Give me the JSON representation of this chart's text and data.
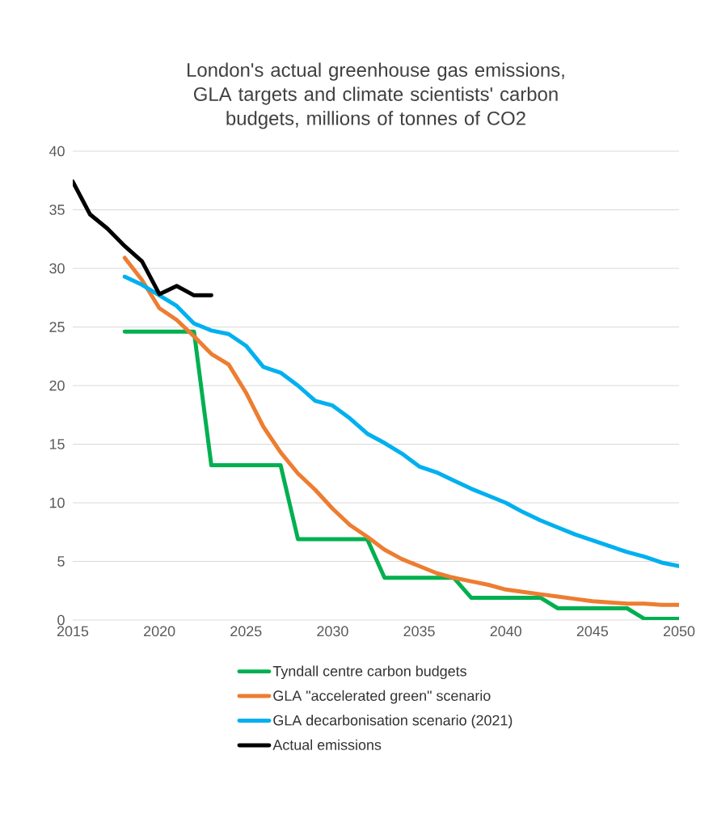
{
  "chart_data": {
    "type": "line",
    "title": "London's actual greenhouse gas emissions, GLA targets and climate scientists' carbon budgets, millions of tonnes of CO2",
    "x": [
      2018,
      2019,
      2020,
      2021,
      2022,
      2023,
      2024,
      2025,
      2026,
      2027,
      2028,
      2029,
      2030,
      2031,
      2032,
      2033,
      2034,
      2035,
      2036,
      2037,
      2038,
      2039,
      2040,
      2041,
      2042,
      2043,
      2044,
      2045,
      2046,
      2047,
      2048,
      2049,
      2050
    ],
    "series": [
      {
        "name": "Tyndall centre carbon budgets",
        "color": "#00b050",
        "values": [
          24.6,
          24.6,
          24.6,
          24.6,
          24.6,
          13.2,
          13.2,
          13.2,
          13.2,
          13.2,
          6.9,
          6.9,
          6.9,
          6.9,
          6.9,
          3.6,
          3.6,
          3.6,
          3.6,
          3.6,
          1.9,
          1.9,
          1.9,
          1.9,
          1.9,
          1.0,
          1.0,
          1.0,
          1.0,
          1.0,
          0.1,
          0.1,
          0.1
        ]
      },
      {
        "name": "GLA \"accelerated green\" scenario",
        "color": "#ed7d31",
        "values": [
          30.9,
          29.0,
          26.6,
          25.6,
          24.2,
          22.7,
          21.8,
          19.4,
          16.5,
          14.3,
          12.5,
          11.1,
          9.5,
          8.1,
          7.1,
          6.0,
          5.2,
          4.6,
          4.0,
          3.6,
          3.3,
          3.0,
          2.6,
          2.4,
          2.2,
          2.0,
          1.8,
          1.6,
          1.5,
          1.4,
          1.4,
          1.3,
          1.3
        ]
      },
      {
        "name": "GLA decarbonisation scenario (2021)",
        "color": "#00b0f0",
        "values": [
          29.3,
          28.6,
          27.7,
          26.8,
          25.3,
          24.7,
          24.4,
          23.4,
          21.6,
          21.1,
          20.0,
          18.7,
          18.3,
          17.2,
          15.9,
          15.1,
          14.2,
          13.1,
          12.6,
          11.9,
          11.2,
          10.6,
          10.0,
          9.2,
          8.5,
          7.9,
          7.3,
          6.8,
          6.3,
          5.8,
          5.4,
          4.9,
          4.6
        ]
      },
      {
        "name": "Actual emissions",
        "color": "#000000",
        "x": [
          2015,
          2016,
          2017,
          2018,
          2019,
          2020,
          2021,
          2022,
          2023
        ],
        "values": [
          37.4,
          34.6,
          33.4,
          31.9,
          30.6,
          27.8,
          28.5,
          27.7,
          27.7
        ]
      }
    ],
    "xlim": [
      2015,
      2050
    ],
    "xticks": [
      2015,
      2020,
      2025,
      2030,
      2035,
      2040,
      2045,
      2050
    ],
    "ylim": [
      0,
      40
    ],
    "yticks": [
      0,
      5,
      10,
      15,
      20,
      25,
      30,
      35,
      40
    ],
    "grid": "y",
    "legend": "bottom",
    "marker": "none",
    "line_style": "solid"
  }
}
